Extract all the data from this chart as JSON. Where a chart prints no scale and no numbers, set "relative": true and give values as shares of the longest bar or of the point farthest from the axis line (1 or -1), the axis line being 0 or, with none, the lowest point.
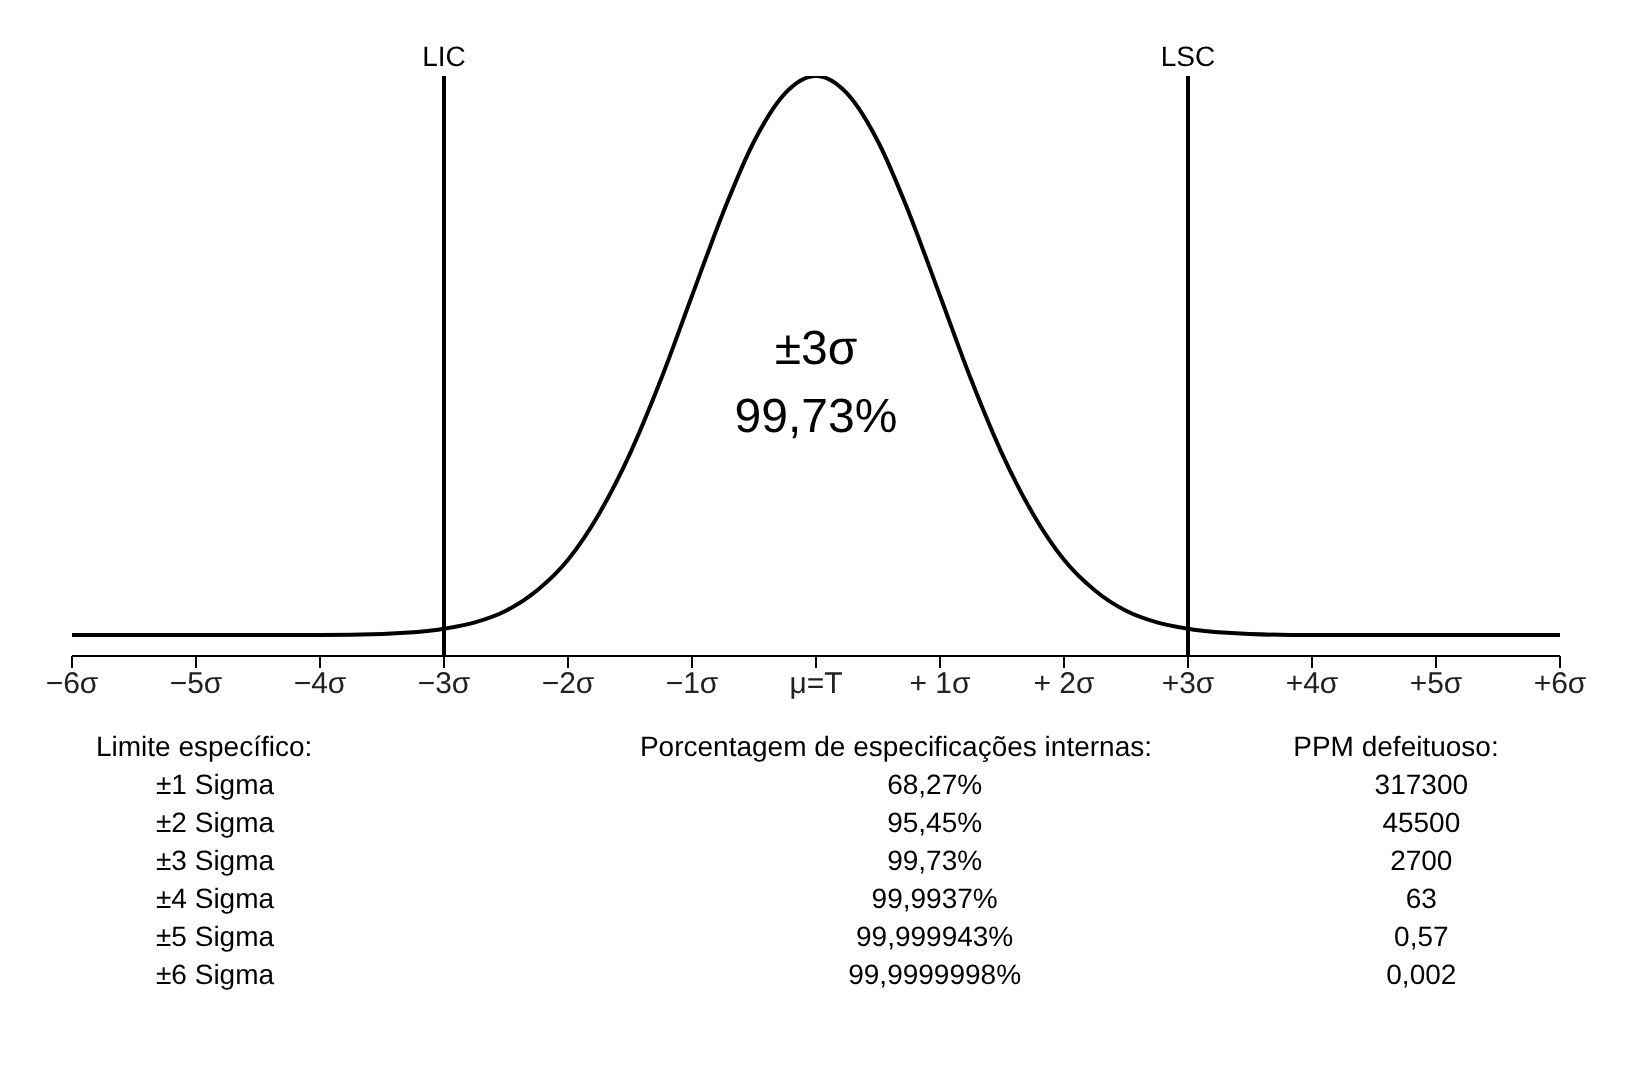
{
  "chart_data": {
    "type": "line",
    "relative": true,
    "marker": "none",
    "line_style": "solid",
    "x": [
      -6,
      -5,
      -4,
      -3.5,
      -3,
      -2.75,
      -2.5,
      -2.25,
      -2,
      -1.75,
      -1.5,
      -1.25,
      -1,
      -0.75,
      -0.5,
      -0.25,
      0,
      0.25,
      0.5,
      0.75,
      1,
      1.25,
      1.5,
      1.75,
      2,
      2.25,
      2.5,
      2.75,
      3,
      3.5,
      4,
      5,
      6
    ],
    "series": [
      {
        "color": "#000000",
        "values": [
          0.036,
          0.036,
          0.036,
          0.038,
          0.047,
          0.058,
          0.078,
          0.113,
          0.166,
          0.245,
          0.349,
          0.477,
          0.621,
          0.764,
          0.887,
          0.97,
          1,
          0.97,
          0.887,
          0.764,
          0.621,
          0.477,
          0.349,
          0.245,
          0.166,
          0.113,
          0.078,
          0.058,
          0.047,
          0.038,
          0.036,
          0.036,
          0.036
        ]
      }
    ],
    "xlim": [
      -6,
      6
    ],
    "xticks": [
      {
        "value": -6,
        "label": "−6σ"
      },
      {
        "value": -5,
        "label": "−5σ"
      },
      {
        "value": -4,
        "label": "−4σ"
      },
      {
        "value": -3,
        "label": "−3σ"
      },
      {
        "value": -2,
        "label": "−2σ"
      },
      {
        "value": -1,
        "label": "−1σ"
      },
      {
        "value": 0,
        "label": "μ=T"
      },
      {
        "value": 1,
        "label": "+ 1σ"
      },
      {
        "value": 2,
        "label": "+ 2σ"
      },
      {
        "value": 3,
        "label": "+3σ"
      },
      {
        "value": 4,
        "label": "+4σ"
      },
      {
        "value": 5,
        "label": "+5σ"
      },
      {
        "value": 6,
        "label": "+6σ"
      }
    ],
    "ref_lines": [
      {
        "axis": "x",
        "value": -3,
        "label": "LIC",
        "color": "#000000"
      },
      {
        "axis": "x",
        "value": 3,
        "label": "LSC",
        "color": "#000000"
      }
    ],
    "annotations": [
      "±3σ",
      "99,73%",
      "Limite específico:",
      "Porcentagem de especificações internas:",
      "PPM defeituoso:",
      "±1 Sigma",
      "68,27%",
      "317300",
      "±2 Sigma",
      "95,45%",
      "45500",
      "±3 Sigma",
      "99,73%",
      "2700",
      "±4 Sigma",
      "99,9937%",
      "63",
      "±5 Sigma",
      "99,999943%",
      "0,57",
      "±6 Sigma",
      "99,9999998%",
      "0,002"
    ]
  }
}
